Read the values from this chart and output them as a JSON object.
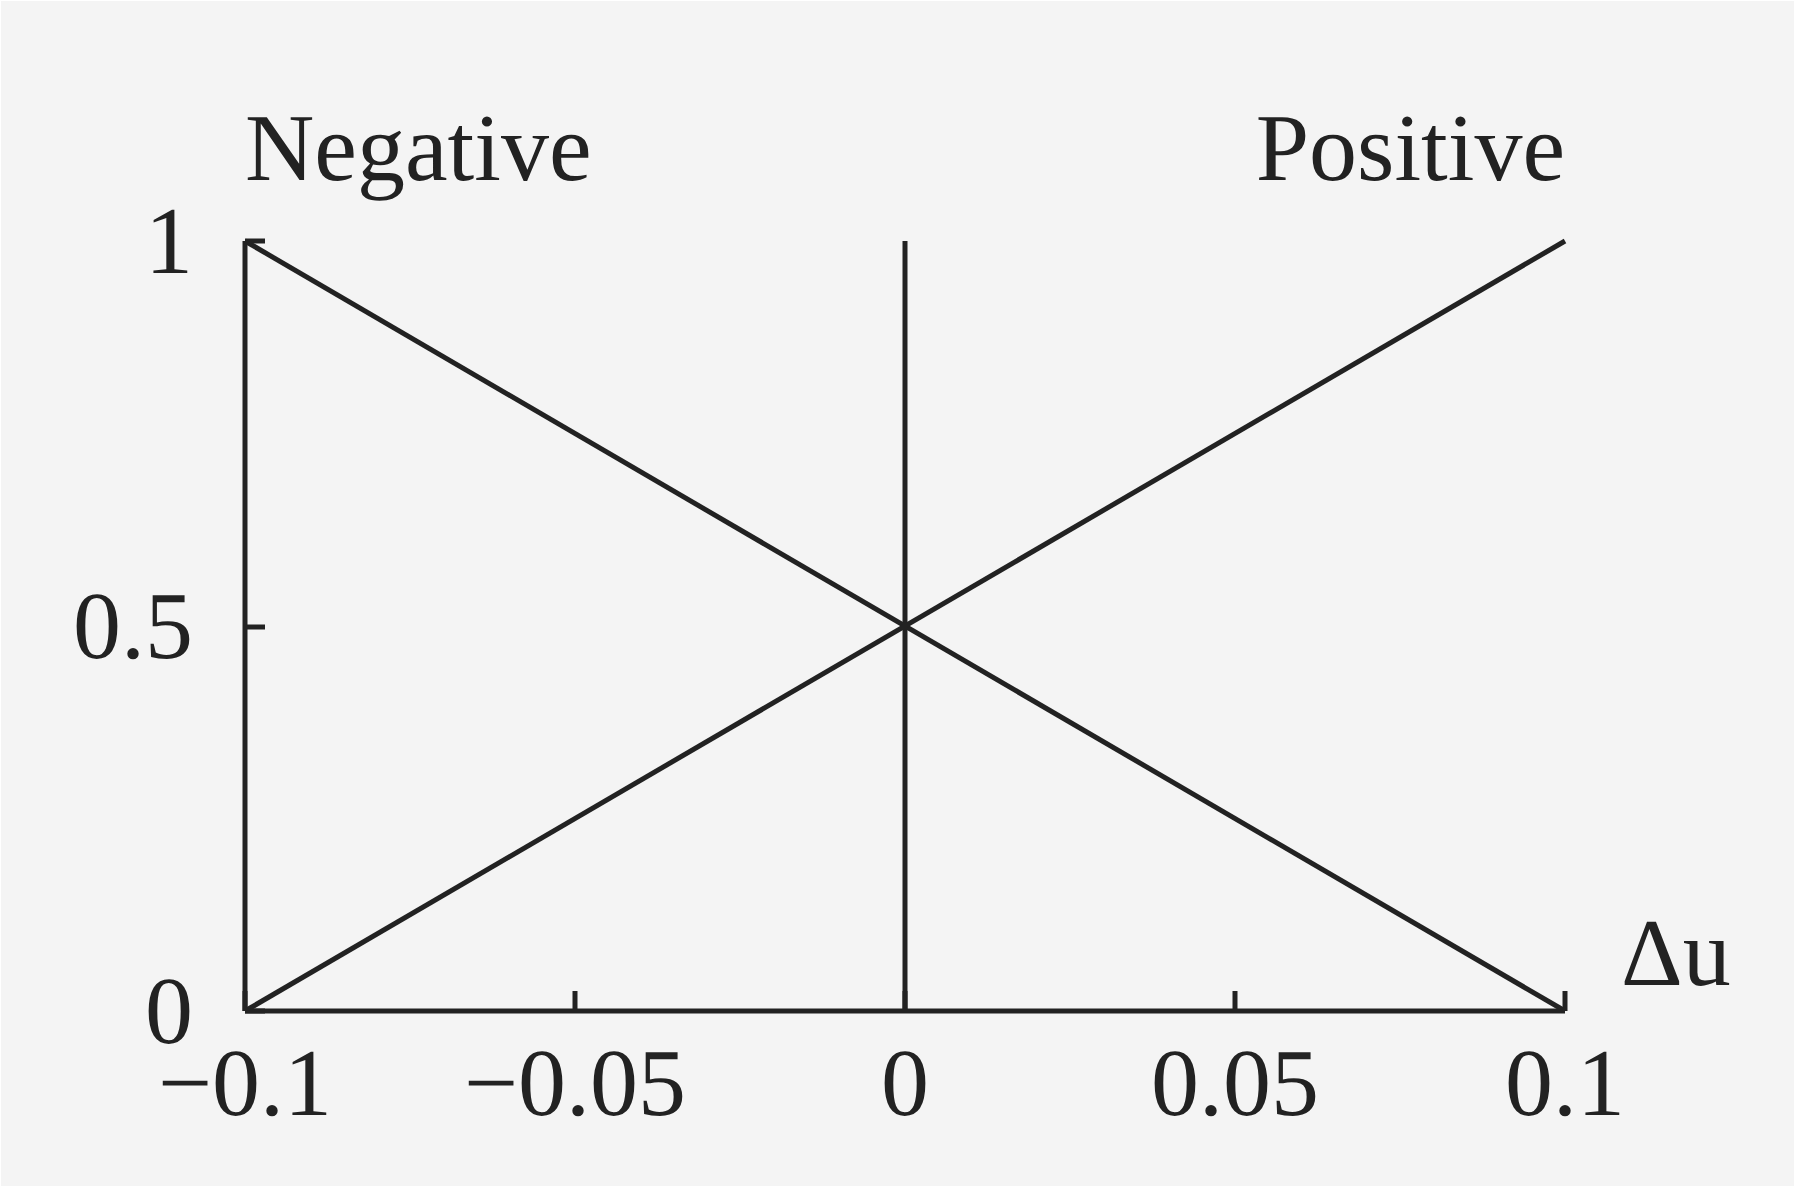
{
  "chart_data": {
    "type": "line",
    "xlabel": "Δu",
    "x": [
      -0.1,
      0.1
    ],
    "series": [
      {
        "name": "Negative",
        "color": "#222222",
        "values": [
          1,
          0
        ]
      },
      {
        "name": "Positive",
        "color": "#222222",
        "values": [
          0,
          1
        ]
      }
    ],
    "xlim": [
      -0.1,
      0.1
    ],
    "ylim": [
      0,
      1
    ],
    "xticks": [
      {
        "value": -0.1,
        "label": "−0.1"
      },
      {
        "value": -0.05,
        "label": "−0.05"
      },
      0,
      0.05,
      0.1
    ],
    "yticks": [
      0,
      0.5,
      1
    ],
    "ref_lines": [
      {
        "axis": "x",
        "value": 0,
        "color": "#222222"
      }
    ]
  }
}
